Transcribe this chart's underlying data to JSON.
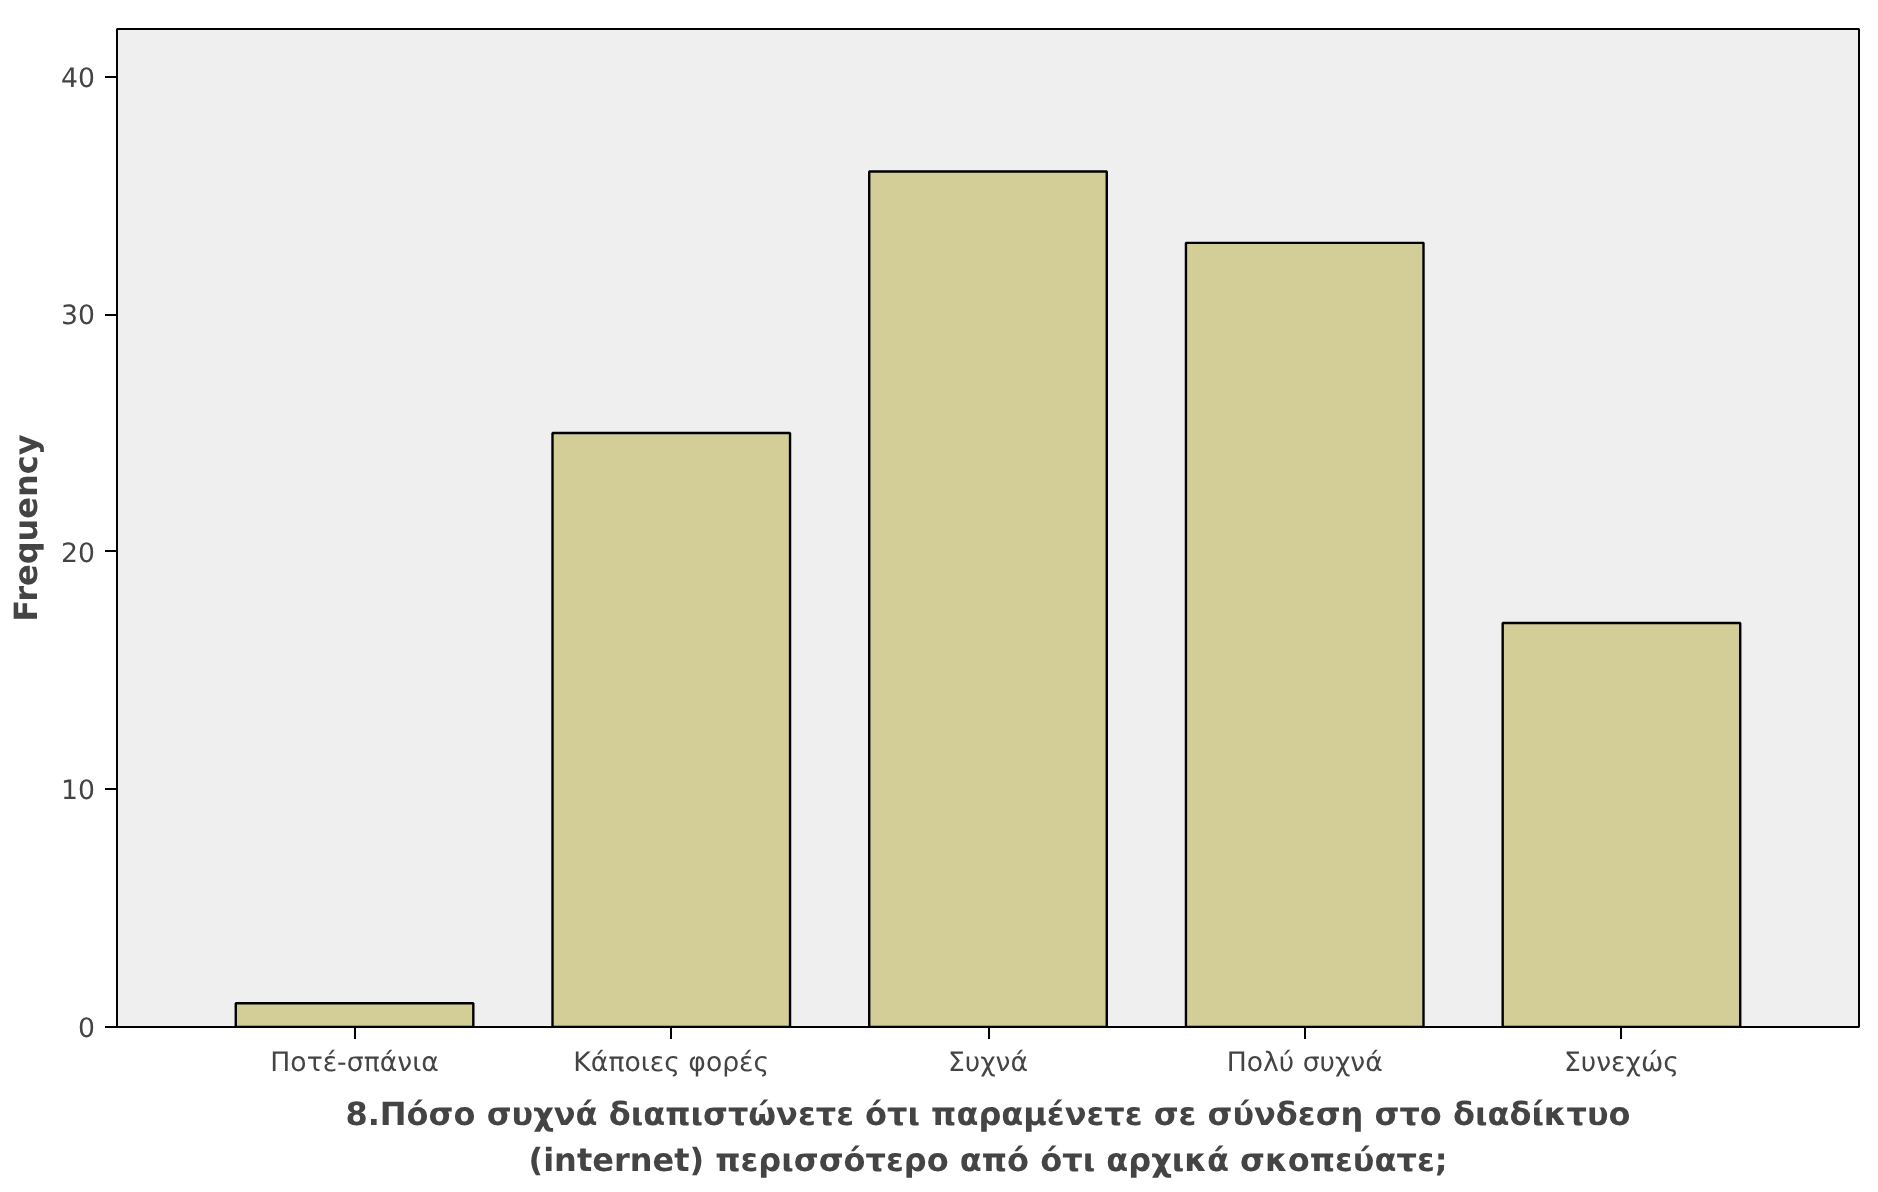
{
  "chart_data": {
    "type": "bar",
    "xlabel": "8.Πόσο συχνά διαπιστώνετε ότι παραμένετε σε σύνδεση στο διαδίκτυο\n(internet) περισσότερο από ότι αρχικά σκοπεύατε;",
    "ylabel": "Frequency",
    "categories": [
      "Ποτέ-σπάνια",
      "Κάποιες φορές",
      "Συχνά",
      "Πολύ συχνά",
      "Συνεχώς"
    ],
    "values": [
      1,
      25,
      36,
      33,
      17
    ],
    "color": "#d3ce97",
    "ylim": [
      0,
      42
    ],
    "yticks": [
      0,
      10,
      20,
      30,
      40
    ],
    "grid": false
  }
}
